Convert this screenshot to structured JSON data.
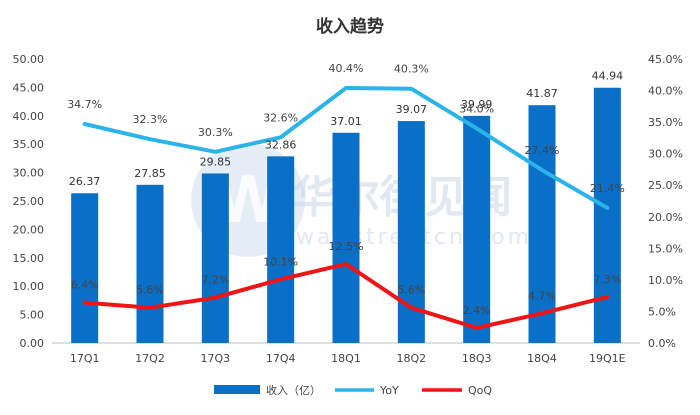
{
  "chart_data": {
    "type": "bar",
    "title": "收入趋势",
    "categories": [
      "17Q1",
      "17Q2",
      "17Q3",
      "17Q4",
      "18Q1",
      "18Q2",
      "18Q3",
      "18Q4",
      "19Q1E"
    ],
    "series": [
      {
        "name": "收入（亿）",
        "type": "bar",
        "axis": "left",
        "color": "#0A6FC6",
        "values": [
          26.37,
          27.85,
          29.85,
          32.86,
          37.01,
          39.07,
          39.99,
          41.87,
          44.94
        ],
        "labels": [
          "26.37",
          "27.85",
          "29.85",
          "32.86",
          "37.01",
          "39.07",
          "39.99",
          "41.87",
          "44.94"
        ]
      },
      {
        "name": "YoY",
        "type": "line",
        "axis": "right",
        "color": "#2AB4EA",
        "values": [
          34.7,
          32.3,
          30.3,
          32.6,
          40.4,
          40.3,
          34.0,
          27.4,
          21.4
        ],
        "labels": [
          "34.7%",
          "32.3%",
          "30.3%",
          "32.6%",
          "40.4%",
          "40.3%",
          "34.0%",
          "27.4%",
          "21.4%"
        ]
      },
      {
        "name": "QoQ",
        "type": "line",
        "axis": "right",
        "color": "#F01414",
        "values": [
          6.4,
          5.6,
          7.2,
          10.1,
          12.5,
          5.6,
          2.4,
          4.7,
          7.3
        ],
        "labels": [
          "6.4%",
          "5.6%",
          "7.2%",
          "10.1%",
          "12.5%",
          "5.6%",
          "2.4%",
          "4.7%",
          "7.3%"
        ]
      }
    ],
    "y_left": {
      "min": 0,
      "max": 50,
      "step": 5,
      "ticks": [
        "0.00",
        "5.00",
        "10.00",
        "15.00",
        "20.00",
        "25.00",
        "30.00",
        "35.00",
        "40.00",
        "45.00",
        "50.00"
      ]
    },
    "y_right": {
      "min": 0,
      "max": 45,
      "step": 5,
      "ticks": [
        "0.0%",
        "5.0%",
        "10.0%",
        "15.0%",
        "20.0%",
        "25.0%",
        "30.0%",
        "35.0%",
        "40.0%",
        "45.0%"
      ]
    },
    "grid": false,
    "legend_position": "bottom"
  },
  "watermark": {
    "text": "华尔街见闻",
    "url": "wallstreetcn.com",
    "icon": "w-logo-icon"
  },
  "colors": {
    "axis": "#bfbfbf",
    "text": "#444444",
    "title": "#333333"
  }
}
